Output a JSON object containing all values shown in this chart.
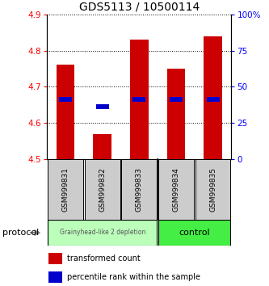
{
  "title": "GDS5113 / 10500114",
  "samples": [
    "GSM999831",
    "GSM999832",
    "GSM999833",
    "GSM999834",
    "GSM999835"
  ],
  "bar_bottoms": [
    4.5,
    4.5,
    4.5,
    4.5,
    4.5
  ],
  "bar_tops": [
    4.76,
    4.57,
    4.83,
    4.75,
    4.84
  ],
  "percentile_values": [
    4.665,
    4.645,
    4.665,
    4.665,
    4.665
  ],
  "ylim": [
    4.5,
    4.9
  ],
  "yticks": [
    4.5,
    4.6,
    4.7,
    4.8,
    4.9
  ],
  "right_yticks": [
    0,
    25,
    50,
    75,
    100
  ],
  "right_ytick_labels": [
    "0",
    "25",
    "50",
    "75",
    "100%"
  ],
  "bar_color": "#cc0000",
  "percentile_color": "#0000cc",
  "group1_label": "Grainyhead-like 2 depletion",
  "group2_label": "control",
  "group1_bg": "#bbffbb",
  "group2_bg": "#44ee44",
  "protocol_label": "protocol",
  "legend_red_label": "transformed count",
  "legend_blue_label": "percentile rank within the sample",
  "bar_width": 0.5,
  "title_fontsize": 10,
  "tick_fontsize": 7.5,
  "sample_fontsize": 6.5,
  "legend_fontsize": 7
}
